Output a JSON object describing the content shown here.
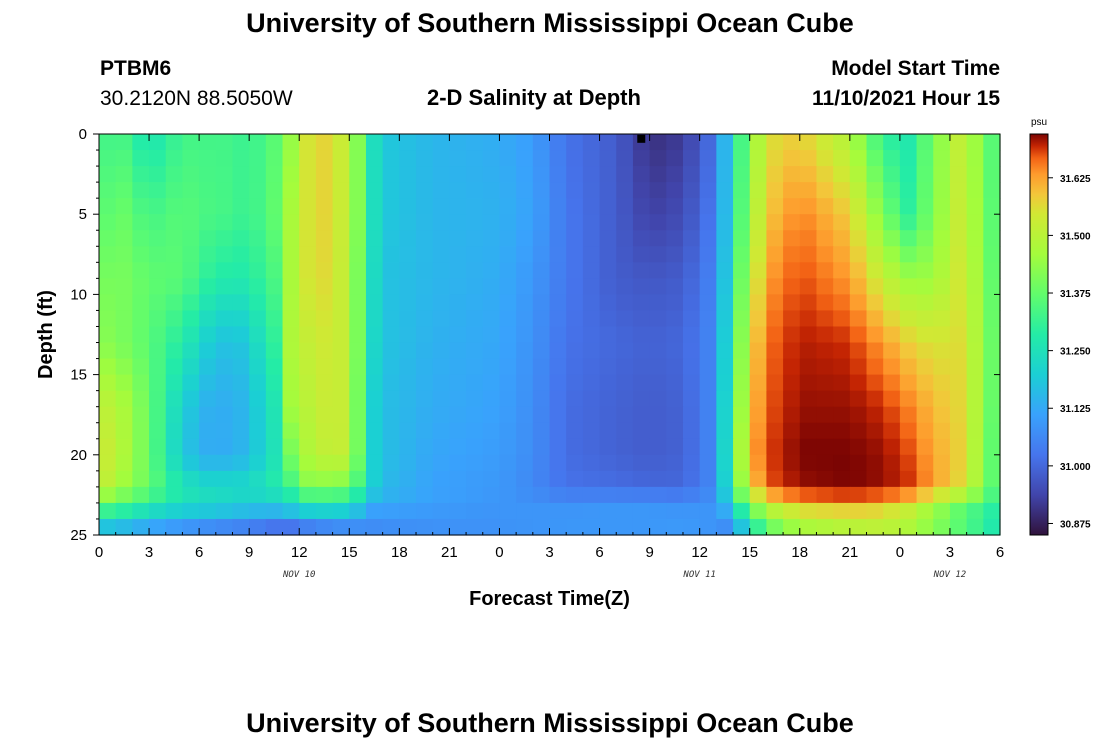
{
  "page": {
    "title_top": "University of Southern Mississippi Ocean Cube",
    "title_bottom": "University of Southern Mississippi Ocean Cube",
    "station_name": "PTBM6",
    "station_coords": "30.2120N  88.5050W",
    "plot_title": "2-D Salinity at Depth",
    "model_label": "Model Start Time",
    "model_time": "11/10/2021 Hour 15"
  },
  "colors": {
    "low": "#30123b",
    "mid": "#a4fc3c",
    "high": "#7a0403"
  },
  "chart_data": {
    "type": "heatmap",
    "title": "2-D Salinity at Depth",
    "xlabel": "Forecast Time(Z)",
    "ylabel": "Depth (ft)",
    "x_range_hours": [
      0,
      54
    ],
    "xticks": {
      "labels": [
        "0",
        "3",
        "6",
        "9",
        "12",
        "15",
        "18",
        "21",
        "0",
        "3",
        "6",
        "9",
        "12",
        "15",
        "18",
        "21",
        "0",
        "3",
        "6"
      ],
      "hours": [
        0,
        3,
        6,
        9,
        12,
        15,
        18,
        21,
        24,
        27,
        30,
        33,
        36,
        39,
        42,
        45,
        48,
        51,
        54
      ]
    },
    "date_labels": [
      {
        "text": "NOV 10",
        "hour": 12
      },
      {
        "text": "NOV 11",
        "hour": 36
      },
      {
        "text": "NOV 12",
        "hour": 51
      }
    ],
    "ylim": [
      0,
      25
    ],
    "yticks": [
      "0",
      "5",
      "10",
      "15",
      "20",
      "25"
    ],
    "yticks_values": [
      0,
      5,
      10,
      15,
      20,
      25
    ],
    "colorbar": {
      "unit": "psu",
      "range": [
        30.85,
        31.72
      ],
      "ticks": [
        "31.625",
        "31.500",
        "31.375",
        "31.250",
        "31.125",
        "31.000",
        "30.875"
      ],
      "tick_values": [
        31.625,
        31.5,
        31.375,
        31.25,
        31.125,
        31.0,
        30.875
      ]
    },
    "marker": {
      "hour": 32.5,
      "depth": 0.3
    },
    "grid": {
      "cols": 54,
      "rows": 25,
      "time_anchors": [
        0,
        1.5,
        3,
        5,
        6.5,
        8,
        9,
        10.5,
        11.5,
        12.5,
        14,
        15,
        15.8,
        16.5,
        17.5,
        20,
        24,
        26,
        28,
        31,
        33,
        35,
        36.5,
        37.3,
        38,
        39,
        40.5,
        42,
        45,
        47,
        48.5,
        50,
        51.5,
        53,
        54
      ],
      "depth_anchors": [
        0,
        5,
        9,
        13,
        17,
        20,
        22,
        23,
        24,
        25
      ],
      "values": [
        [
          31.33,
          31.33,
          31.25,
          31.33,
          31.33,
          31.33,
          31.31,
          31.36,
          31.44,
          31.55,
          31.58,
          31.48,
          31.38,
          31.24,
          31.18,
          31.15,
          31.13,
          31.1,
          31.02,
          30.98,
          30.9,
          30.92,
          31.0,
          31.11,
          31.23,
          31.44,
          31.56,
          31.58,
          31.48,
          31.3,
          31.27,
          31.4,
          31.51,
          31.42,
          31.3
        ],
        [
          31.36,
          31.38,
          31.33,
          31.36,
          31.34,
          31.33,
          31.31,
          31.37,
          31.47,
          31.55,
          31.58,
          31.48,
          31.38,
          31.24,
          31.18,
          31.15,
          31.14,
          31.11,
          31.03,
          30.98,
          30.93,
          30.95,
          31.02,
          31.12,
          31.24,
          31.47,
          31.6,
          31.65,
          31.58,
          31.4,
          31.3,
          31.41,
          31.52,
          31.43,
          31.3
        ],
        [
          31.4,
          31.4,
          31.37,
          31.36,
          31.3,
          31.27,
          31.28,
          31.34,
          31.47,
          31.55,
          31.57,
          31.48,
          31.36,
          31.23,
          31.17,
          31.15,
          31.13,
          31.09,
          31.03,
          30.98,
          30.97,
          30.98,
          31.04,
          31.14,
          31.26,
          31.52,
          31.64,
          31.68,
          31.63,
          31.52,
          31.45,
          31.45,
          31.54,
          31.44,
          31.31
        ],
        [
          31.43,
          31.4,
          31.36,
          31.28,
          31.2,
          31.16,
          31.2,
          31.3,
          31.48,
          31.52,
          31.55,
          31.5,
          31.35,
          31.22,
          31.17,
          31.14,
          31.12,
          31.08,
          31.02,
          31.0,
          30.99,
          31.0,
          31.05,
          31.16,
          31.28,
          31.57,
          31.67,
          31.7,
          31.69,
          31.63,
          31.58,
          31.55,
          31.56,
          31.45,
          31.32
        ],
        [
          31.52,
          31.47,
          31.38,
          31.2,
          31.14,
          31.13,
          31.16,
          31.26,
          31.46,
          31.5,
          31.54,
          31.51,
          31.33,
          31.2,
          31.16,
          31.13,
          31.11,
          31.07,
          31.01,
          30.99,
          30.98,
          30.99,
          31.05,
          31.17,
          31.3,
          31.6,
          31.68,
          31.71,
          31.71,
          31.69,
          31.65,
          31.6,
          31.57,
          31.45,
          31.31
        ],
        [
          31.55,
          31.48,
          31.38,
          31.18,
          31.13,
          31.13,
          31.16,
          31.25,
          31.4,
          31.48,
          31.53,
          31.51,
          31.33,
          31.2,
          31.16,
          31.12,
          31.1,
          31.07,
          31.01,
          30.99,
          30.98,
          30.99,
          31.05,
          31.17,
          31.33,
          31.62,
          31.69,
          31.72,
          31.72,
          31.71,
          31.68,
          31.62,
          31.58,
          31.44,
          31.3
        ],
        [
          31.53,
          31.45,
          31.38,
          31.26,
          31.23,
          31.23,
          31.23,
          31.28,
          31.33,
          31.42,
          31.42,
          31.4,
          31.3,
          31.2,
          31.15,
          31.11,
          31.09,
          31.06,
          31.02,
          31.01,
          31.0,
          31.0,
          31.05,
          31.16,
          31.3,
          31.58,
          31.68,
          31.71,
          31.72,
          31.71,
          31.69,
          31.63,
          31.57,
          31.44,
          31.3
        ],
        [
          31.4,
          31.36,
          31.3,
          31.25,
          31.24,
          31.22,
          31.2,
          31.2,
          31.23,
          31.27,
          31.28,
          31.26,
          31.2,
          31.14,
          31.13,
          31.11,
          31.09,
          31.08,
          31.07,
          31.08,
          31.08,
          31.07,
          31.08,
          31.13,
          31.24,
          31.45,
          31.57,
          31.63,
          31.65,
          31.63,
          31.58,
          31.5,
          31.42,
          31.35,
          31.28
        ],
        [
          31.25,
          31.22,
          31.18,
          31.14,
          31.13,
          31.12,
          31.11,
          31.1,
          31.11,
          31.13,
          31.14,
          31.13,
          31.1,
          31.08,
          31.08,
          31.08,
          31.08,
          31.09,
          31.1,
          31.1,
          31.1,
          31.1,
          31.09,
          31.08,
          31.13,
          31.3,
          31.42,
          31.48,
          31.5,
          31.5,
          31.46,
          31.4,
          31.33,
          31.28,
          31.25
        ],
        [
          31.12,
          31.1,
          31.07,
          31.04,
          31.02,
          31.0,
          30.99,
          30.95,
          30.94,
          30.97,
          31.0,
          31.02,
          31.05,
          31.06,
          31.07,
          31.08,
          31.08,
          31.08,
          31.08,
          31.08,
          31.08,
          31.09,
          31.08,
          31.06,
          31.04,
          31.24,
          31.38,
          31.46,
          31.5,
          31.52,
          31.5,
          31.45,
          31.4,
          31.33,
          31.25
        ]
      ]
    }
  }
}
